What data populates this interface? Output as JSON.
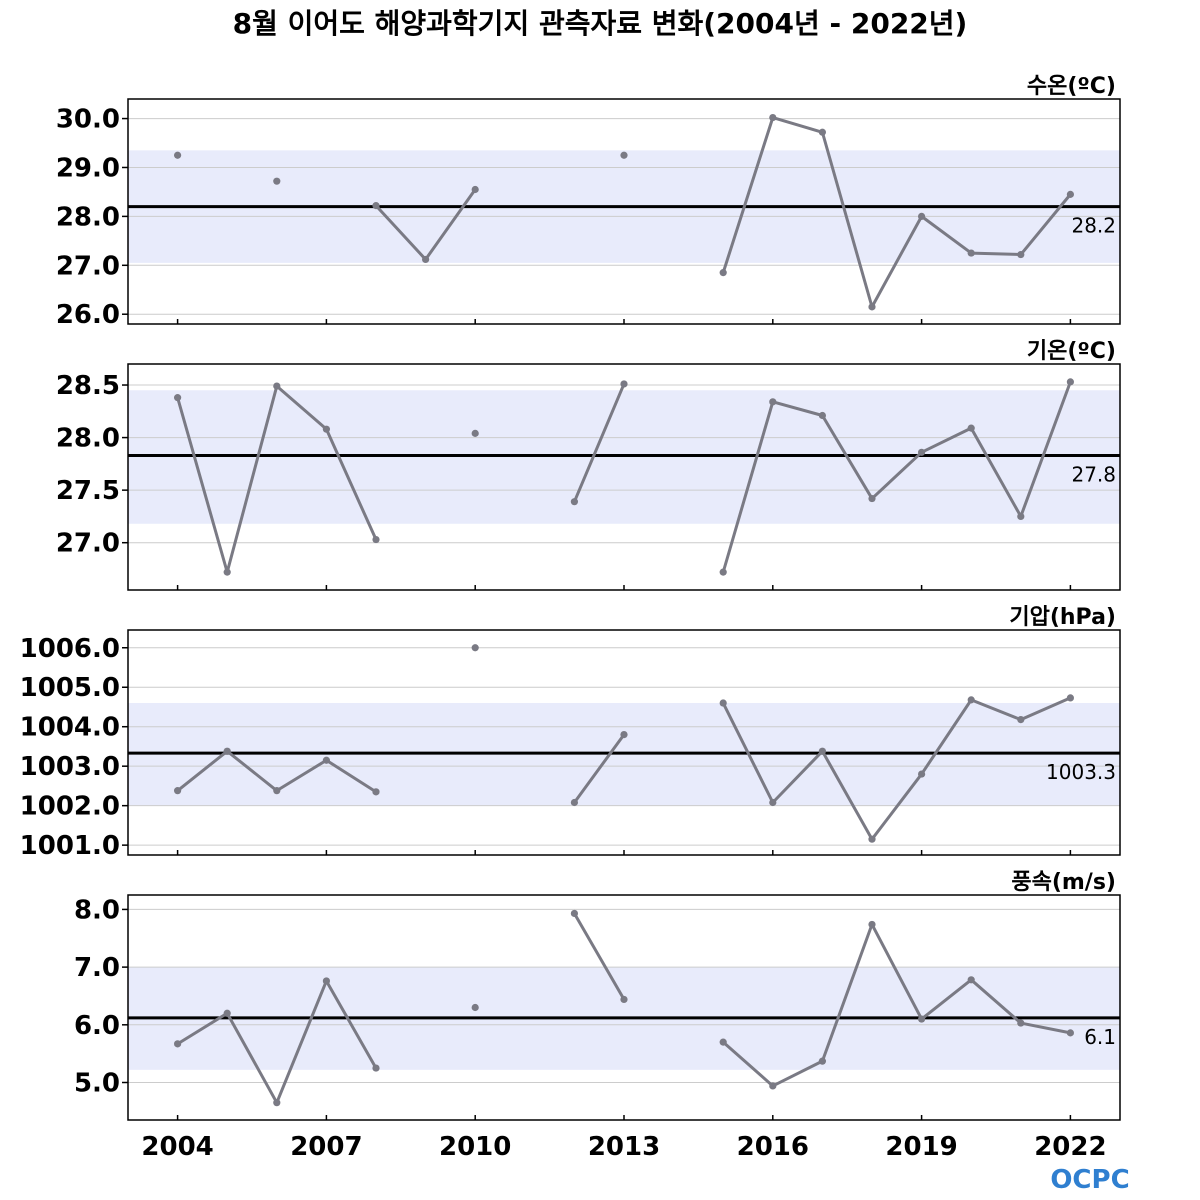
{
  "title": "8월 이어도 해양과학기지 관측자료 변화(2004년 - 2022년)",
  "logo": "OCPC",
  "colors": {
    "band": "#e8ebfb",
    "series": "#7a7a84",
    "mean": "#000000",
    "grid": "#cccccc",
    "logo": "#2f7fd0"
  },
  "chart_data": {
    "type": "line",
    "x_ticks": [
      2004,
      2007,
      2010,
      2013,
      2016,
      2019,
      2022
    ],
    "x_tick_labels": [
      "2004",
      "2007",
      "2010",
      "2013",
      "2016",
      "2019",
      "2022"
    ],
    "xlim": [
      2003,
      2023
    ],
    "grid": true,
    "panels": [
      {
        "label": "수온(ºC)",
        "ylim": [
          25.8,
          30.4
        ],
        "yticks": [
          26.0,
          27.0,
          28.0,
          29.0,
          30.0
        ],
        "ytick_labels": [
          "26.0",
          "27.0",
          "28.0",
          "29.0",
          "30.0"
        ],
        "mean": 28.2,
        "mean_label": "28.2",
        "band": [
          27.05,
          29.35
        ],
        "x": [
          2004,
          2005,
          2006,
          2007,
          2008,
          2009,
          2010,
          2011,
          2012,
          2013,
          2014,
          2015,
          2016,
          2017,
          2018,
          2019,
          2020,
          2021,
          2022
        ],
        "values": [
          29.25,
          null,
          28.72,
          null,
          28.22,
          27.12,
          28.55,
          null,
          null,
          29.25,
          null,
          26.85,
          30.02,
          29.72,
          26.15,
          28.0,
          27.25,
          27.22,
          28.45
        ]
      },
      {
        "label": "기온(ºC)",
        "ylim": [
          26.55,
          28.7
        ],
        "yticks": [
          27.0,
          27.5,
          28.0,
          28.5
        ],
        "ytick_labels": [
          "27.0",
          "27.5",
          "28.0",
          "28.5"
        ],
        "mean": 27.83,
        "mean_label": "27.8",
        "band": [
          27.18,
          28.45
        ],
        "x": [
          2004,
          2005,
          2006,
          2007,
          2008,
          2009,
          2010,
          2011,
          2012,
          2013,
          2014,
          2015,
          2016,
          2017,
          2018,
          2019,
          2020,
          2021,
          2022
        ],
        "values": [
          28.38,
          26.72,
          28.49,
          28.08,
          27.03,
          null,
          28.04,
          null,
          27.39,
          28.51,
          null,
          26.72,
          28.34,
          28.21,
          27.42,
          27.86,
          28.09,
          27.25,
          28.53
        ]
      },
      {
        "label": "기압(hPa)",
        "ylim": [
          1000.75,
          1006.45
        ],
        "yticks": [
          1001.0,
          1002.0,
          1003.0,
          1004.0,
          1005.0,
          1006.0
        ],
        "ytick_labels": [
          "1001.0",
          "1002.0",
          "1003.0",
          "1004.0",
          "1005.0",
          "1006.0"
        ],
        "mean": 1003.33,
        "mean_label": "1003.3",
        "band": [
          1002.0,
          1004.6
        ],
        "x": [
          2004,
          2005,
          2006,
          2007,
          2008,
          2009,
          2010,
          2011,
          2012,
          2013,
          2014,
          2015,
          2016,
          2017,
          2018,
          2019,
          2020,
          2021,
          2022
        ],
        "values": [
          1002.38,
          1003.38,
          1002.38,
          1003.15,
          1002.35,
          null,
          1006.0,
          null,
          1002.08,
          1003.8,
          null,
          1004.6,
          1002.08,
          1003.38,
          1001.15,
          1002.8,
          1004.68,
          1004.18,
          1004.73
        ]
      },
      {
        "label": "풍속(m/s)",
        "ylim": [
          4.35,
          8.25
        ],
        "yticks": [
          5.0,
          6.0,
          7.0,
          8.0
        ],
        "ytick_labels": [
          "5.0",
          "6.0",
          "7.0",
          "8.0"
        ],
        "mean": 6.12,
        "mean_label": "6.1",
        "band": [
          5.22,
          7.0
        ],
        "x": [
          2004,
          2005,
          2006,
          2007,
          2008,
          2009,
          2010,
          2011,
          2012,
          2013,
          2014,
          2015,
          2016,
          2017,
          2018,
          2019,
          2020,
          2021,
          2022
        ],
        "values": [
          5.67,
          6.2,
          4.65,
          6.76,
          5.25,
          null,
          6.3,
          null,
          7.93,
          6.44,
          null,
          5.7,
          4.94,
          5.37,
          7.74,
          6.1,
          6.78,
          6.03,
          5.86
        ]
      }
    ]
  }
}
